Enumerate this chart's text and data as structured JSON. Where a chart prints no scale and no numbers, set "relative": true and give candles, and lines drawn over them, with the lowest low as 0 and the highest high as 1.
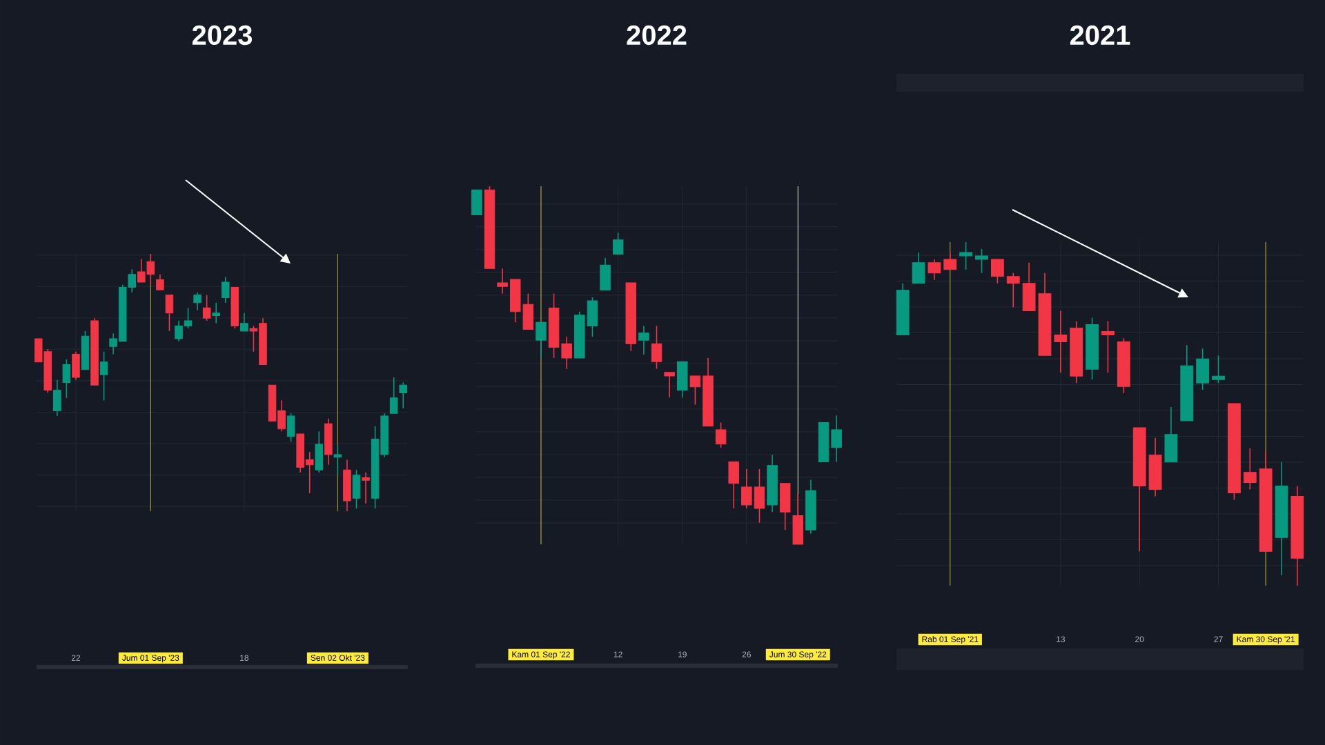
{
  "chart_data": [
    {
      "type": "candlestick",
      "title": "2023",
      "relative": true,
      "grid": true,
      "categories": [
        null,
        null,
        null,
        null,
        "22",
        null,
        null,
        null,
        null,
        null,
        null,
        null,
        "Jum 01 Sep '23",
        null,
        null,
        null,
        null,
        null,
        null,
        null,
        null,
        null,
        "18",
        null,
        null,
        null,
        null,
        null,
        null,
        null,
        null,
        null,
        "Sen 02 Okt '23",
        null,
        null,
        null,
        null,
        null,
        null,
        null
      ],
      "ohlc": [
        [
          0.67,
          0.67,
          0.58,
          0.58
        ],
        [
          0.62,
          0.63,
          0.46,
          0.47
        ],
        [
          0.39,
          0.51,
          0.37,
          0.47
        ],
        [
          0.5,
          0.59,
          0.44,
          0.57
        ],
        [
          0.61,
          0.62,
          0.51,
          0.52
        ],
        [
          0.55,
          0.7,
          0.55,
          0.68
        ],
        [
          0.74,
          0.75,
          0.49,
          0.49
        ],
        [
          0.53,
          0.62,
          0.43,
          0.58
        ],
        [
          0.64,
          0.69,
          0.61,
          0.67
        ],
        [
          0.66,
          0.88,
          0.66,
          0.87
        ],
        [
          0.87,
          0.94,
          0.85,
          0.92
        ],
        [
          0.93,
          0.98,
          0.89,
          0.89
        ],
        [
          0.97,
          1.0,
          0.88,
          0.92
        ],
        [
          0.9,
          0.92,
          0.86,
          0.86
        ],
        [
          0.84,
          0.84,
          0.7,
          0.77
        ],
        [
          0.67,
          0.74,
          0.66,
          0.72
        ],
        [
          0.72,
          0.79,
          0.71,
          0.74
        ],
        [
          0.81,
          0.85,
          0.78,
          0.84
        ],
        [
          0.79,
          0.84,
          0.74,
          0.75
        ],
        [
          0.76,
          0.81,
          0.73,
          0.77
        ],
        [
          0.83,
          0.91,
          0.81,
          0.89
        ],
        [
          0.87,
          0.87,
          0.71,
          0.72
        ],
        [
          0.7,
          0.77,
          0.7,
          0.73
        ],
        [
          0.71,
          0.72,
          0.62,
          0.7
        ],
        [
          0.73,
          0.75,
          0.57,
          0.57
        ],
        [
          0.49,
          0.49,
          0.35,
          0.35
        ],
        [
          0.39,
          0.43,
          0.31,
          0.32
        ],
        [
          0.29,
          0.38,
          0.27,
          0.37
        ],
        [
          0.3,
          0.3,
          0.15,
          0.17
        ],
        [
          0.2,
          0.23,
          0.07,
          0.18
        ],
        [
          0.16,
          0.31,
          0.15,
          0.26
        ],
        [
          0.34,
          0.36,
          0.18,
          0.22
        ],
        [
          0.21,
          0.26,
          0.14,
          0.22
        ],
        [
          0.16,
          0.2,
          0,
          0.04
        ],
        [
          0.05,
          0.16,
          0.01,
          0.14
        ],
        [
          0.13,
          0.15,
          0.03,
          0.12
        ],
        [
          0.05,
          0.33,
          0.01,
          0.28
        ],
        [
          0.22,
          0.38,
          0.21,
          0.37
        ],
        [
          0.38,
          0.52,
          0.38,
          0.44
        ],
        [
          0.46,
          0.5,
          0.4,
          0.49
        ]
      ],
      "colors": [
        "#f23645",
        "#f23645",
        "#089981",
        "#089981",
        "#f23645",
        "#089981",
        "#f23645",
        "#089981",
        "#089981",
        "#089981",
        "#089981",
        "#f23645",
        "#f23645",
        "#f23645",
        "#f23645",
        "#089981",
        "#089981",
        "#089981",
        "#f23645",
        "#089981",
        "#089981",
        "#f23645",
        "#089981",
        "#f23645",
        "#f23645",
        "#f23645",
        "#f23645",
        "#089981",
        "#f23645",
        "#f23645",
        "#089981",
        "#f23645",
        "#089981",
        "#f23645",
        "#089981",
        "#f23645",
        "#089981",
        "#089981",
        "#089981",
        "#089981"
      ],
      "ref_lines": [
        {
          "axis": "x",
          "value": "Jum 01 Sep '23",
          "color": "#c8b234"
        },
        {
          "axis": "x",
          "value": "Sen 02 Okt '23",
          "color": "#c4ae30"
        }
      ]
    },
    {
      "type": "candlestick",
      "title": "2022",
      "relative": true,
      "grid": true,
      "categories": [
        null,
        null,
        null,
        null,
        null,
        "Kam 01 Sep '22",
        null,
        null,
        null,
        null,
        null,
        "12",
        null,
        null,
        null,
        null,
        "19",
        null,
        null,
        null,
        null,
        "26",
        null,
        null,
        null,
        "Jum 30 Sep '22",
        null,
        null,
        null
      ],
      "ohlc": [
        [
          0.92,
          0.99,
          0.92,
          0.99
        ],
        [
          0.99,
          1.0,
          0.77,
          0.77
        ],
        [
          0.73,
          0.77,
          0.7,
          0.72
        ],
        [
          0.74,
          0.74,
          0.62,
          0.65
        ],
        [
          0.67,
          0.7,
          0.6,
          0.6
        ],
        [
          0.57,
          0.62,
          0.52,
          0.62
        ],
        [
          0.66,
          0.7,
          0.52,
          0.55
        ],
        [
          0.56,
          0.58,
          0.49,
          0.52
        ],
        [
          0.52,
          0.65,
          0.52,
          0.64
        ],
        [
          0.61,
          0.69,
          0.58,
          0.68
        ],
        [
          0.71,
          0.8,
          0.71,
          0.78
        ],
        [
          0.81,
          0.87,
          0.81,
          0.85
        ],
        [
          0.73,
          0.73,
          0.54,
          0.56
        ],
        [
          0.57,
          0.61,
          0.53,
          0.59
        ],
        [
          0.56,
          0.61,
          0.49,
          0.51
        ],
        [
          0.48,
          0.48,
          0.41,
          0.47
        ],
        [
          0.43,
          0.51,
          0.41,
          0.51
        ],
        [
          0.47,
          0.47,
          0.39,
          0.44
        ],
        [
          0.47,
          0.52,
          0.33,
          0.33
        ],
        [
          0.32,
          0.34,
          0.27,
          0.28
        ],
        [
          0.23,
          0.23,
          0.1,
          0.17
        ],
        [
          0.16,
          0.21,
          0.1,
          0.11
        ],
        [
          0.16,
          0.21,
          0.06,
          0.1
        ],
        [
          0.11,
          0.25,
          0.09,
          0.22
        ],
        [
          0.17,
          0.17,
          0.04,
          0.09
        ],
        [
          0.08,
          0.14,
          0,
          0
        ],
        [
          0.04,
          0.18,
          0.03,
          0.15
        ],
        [
          0.23,
          0.34,
          0.23,
          0.34
        ],
        [
          0.27,
          0.36,
          0.23,
          0.32
        ]
      ],
      "colors": [
        "#089981",
        "#f23645",
        "#f23645",
        "#f23645",
        "#f23645",
        "#089981",
        "#f23645",
        "#f23645",
        "#089981",
        "#089981",
        "#089981",
        "#089981",
        "#f23645",
        "#089981",
        "#f23645",
        "#f23645",
        "#089981",
        "#f23645",
        "#f23645",
        "#f23645",
        "#f23645",
        "#f23645",
        "#f23645",
        "#089981",
        "#f23645",
        "#f23645",
        "#089981",
        "#089981",
        "#089981"
      ],
      "ref_lines": [
        {
          "axis": "x",
          "value": "Kam 01 Sep '22",
          "color": "#d8c23a"
        },
        {
          "axis": "x",
          "value": "Jum 30 Sep '22",
          "color": "#e6e2c8"
        }
      ]
    },
    {
      "type": "candlestick",
      "title": "2021",
      "relative": true,
      "grid": true,
      "categories": [
        null,
        null,
        null,
        "Rab 01 Sep '21",
        null,
        null,
        null,
        null,
        null,
        null,
        "13",
        null,
        null,
        null,
        null,
        "20",
        null,
        null,
        null,
        null,
        "27",
        null,
        null,
        "Kam 30 Sep '21",
        null,
        null
      ],
      "ohlc": [
        [
          0.73,
          0.88,
          0.73,
          0.86
        ],
        [
          0.88,
          0.97,
          0.88,
          0.94
        ],
        [
          0.94,
          0.95,
          0.89,
          0.91
        ],
        [
          0.95,
          0.97,
          0.92,
          0.92
        ],
        [
          0.96,
          1.0,
          0.92,
          0.97
        ],
        [
          0.95,
          0.98,
          0.91,
          0.96
        ],
        [
          0.95,
          0.95,
          0.88,
          0.9
        ],
        [
          0.9,
          0.91,
          0.81,
          0.88
        ],
        [
          0.88,
          0.94,
          0.8,
          0.8
        ],
        [
          0.85,
          0.91,
          0.67,
          0.67
        ],
        [
          0.73,
          0.8,
          0.62,
          0.71
        ],
        [
          0.75,
          0.77,
          0.59,
          0.61
        ],
        [
          0.63,
          0.78,
          0.6,
          0.76
        ],
        [
          0.74,
          0.77,
          0.62,
          0.73
        ],
        [
          0.71,
          0.72,
          0.56,
          0.58
        ],
        [
          0.46,
          0.46,
          0.1,
          0.29
        ],
        [
          0.38,
          0.43,
          0.26,
          0.28
        ],
        [
          0.36,
          0.52,
          0.36,
          0.44
        ],
        [
          0.48,
          0.7,
          0.48,
          0.64
        ],
        [
          0.59,
          0.69,
          0.57,
          0.66
        ],
        [
          0.6,
          0.67,
          0.59,
          0.61
        ],
        [
          0.53,
          0.53,
          0.25,
          0.27
        ],
        [
          0.33,
          0.4,
          0.28,
          0.3
        ],
        [
          0.34,
          0.39,
          0.1,
          0.1
        ],
        [
          0.14,
          0.36,
          0.03,
          0.29
        ],
        [
          0.26,
          0.29,
          0,
          0.08
        ]
      ],
      "colors": [
        "#089981",
        "#089981",
        "#f23645",
        "#f23645",
        "#089981",
        "#089981",
        "#f23645",
        "#f23645",
        "#f23645",
        "#f23645",
        "#f23645",
        "#f23645",
        "#089981",
        "#f23645",
        "#f23645",
        "#f23645",
        "#f23645",
        "#089981",
        "#089981",
        "#089981",
        "#089981",
        "#f23645",
        "#f23645",
        "#f23645",
        "#089981",
        "#f23645"
      ],
      "ref_lines": [
        {
          "axis": "x",
          "value": "Rab 01 Sep '21",
          "color": "#c8b234"
        },
        {
          "axis": "x",
          "value": "Kam 30 Sep '21",
          "color": "#d0ba38"
        }
      ]
    }
  ]
}
